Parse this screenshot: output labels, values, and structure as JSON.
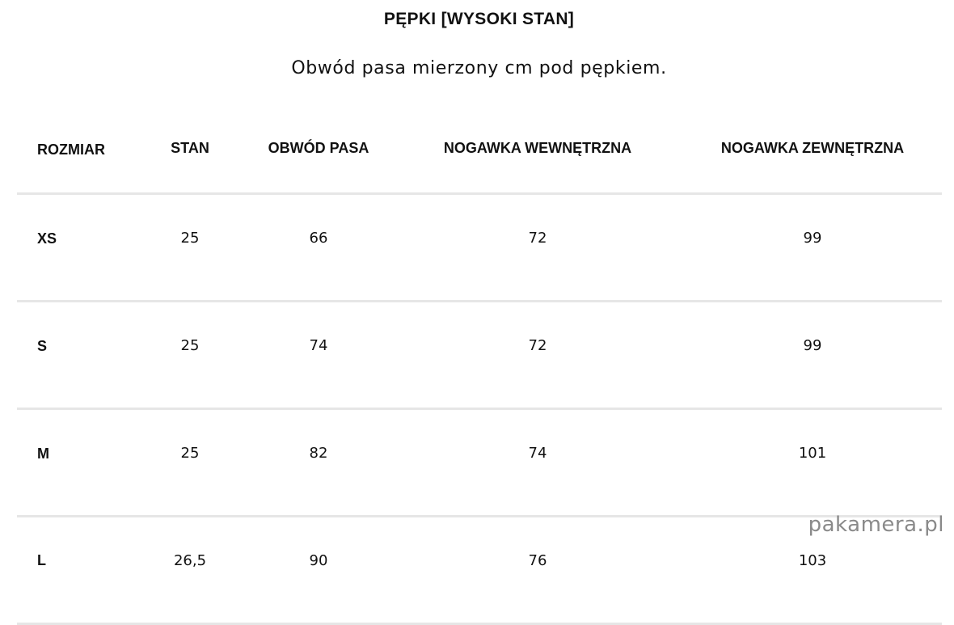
{
  "title": "PĘPKI [WYSOKI STAN]",
  "subtitle": "Obwód pasa mierzony cm pod pępkiem.",
  "table": {
    "headers": [
      "ROZMIAR",
      "STAN",
      "OBWÓD PASA",
      "NOGAWKA WEWNĘTRZNA",
      "NOGAWKA ZEWNĘTRZNA"
    ],
    "rows": [
      [
        "XS",
        "25",
        "66",
        "72",
        "99"
      ],
      [
        "S",
        "25",
        "74",
        "72",
        "99"
      ],
      [
        "M",
        "25",
        "82",
        "74",
        "101"
      ],
      [
        "L",
        "26,5",
        "90",
        "76",
        "103"
      ]
    ]
  },
  "watermark": "pakamera.pl"
}
